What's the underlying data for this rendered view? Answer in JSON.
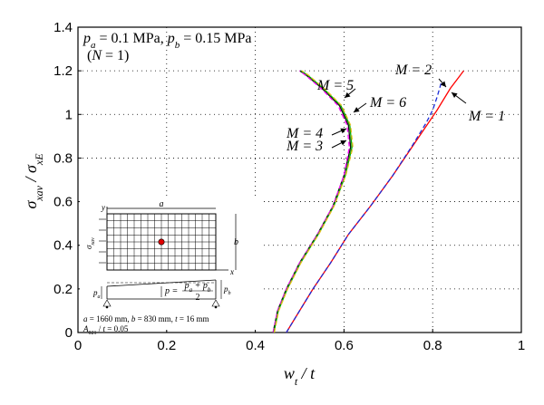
{
  "chart_data": {
    "type": "line",
    "title": "",
    "xlabel": "w_t / t",
    "ylabel": "σ_xav / σ_xE",
    "xlim": [
      0,
      1
    ],
    "ylim": [
      0,
      1.4
    ],
    "xticks": [
      "0",
      "0.2",
      "0.4",
      "0.6",
      "0.8",
      "1"
    ],
    "yticks": [
      "0",
      "0.2",
      "0.4",
      "0.6",
      "0.8",
      "1",
      "1.2",
      "1.4"
    ],
    "grid": "dotted",
    "annotations": {
      "line1": "p_a = 0.1 MPa, p_b = 0.15 MPa",
      "line2": "(N = 1)"
    },
    "series": [
      {
        "name": "M = 1",
        "color": "#ff0000",
        "dash": "solid",
        "points": [
          [
            0.47,
            0.0
          ],
          [
            0.5,
            0.1
          ],
          [
            0.53,
            0.2
          ],
          [
            0.57,
            0.32
          ],
          [
            0.61,
            0.45
          ],
          [
            0.66,
            0.58
          ],
          [
            0.71,
            0.72
          ],
          [
            0.76,
            0.87
          ],
          [
            0.81,
            1.02
          ],
          [
            0.84,
            1.12
          ],
          [
            0.87,
            1.2
          ]
        ]
      },
      {
        "name": "M = 2",
        "color": "#1a2bd8",
        "dash": "dashed",
        "points": [
          [
            0.47,
            0.0
          ],
          [
            0.5,
            0.1
          ],
          [
            0.53,
            0.2
          ],
          [
            0.57,
            0.32
          ],
          [
            0.61,
            0.45
          ],
          [
            0.66,
            0.58
          ],
          [
            0.71,
            0.72
          ],
          [
            0.755,
            0.86
          ],
          [
            0.785,
            0.96
          ],
          [
            0.8,
            1.02
          ],
          [
            0.81,
            1.08
          ],
          [
            0.82,
            1.15
          ]
        ]
      },
      {
        "name": "M = 3",
        "color": "#111111",
        "dash": "solid",
        "points": [
          [
            0.44,
            0.0
          ],
          [
            0.45,
            0.1
          ],
          [
            0.47,
            0.2
          ],
          [
            0.5,
            0.32
          ],
          [
            0.54,
            0.45
          ],
          [
            0.575,
            0.58
          ],
          [
            0.6,
            0.72
          ],
          [
            0.615,
            0.85
          ],
          [
            0.61,
            0.95
          ],
          [
            0.59,
            1.04
          ],
          [
            0.55,
            1.12
          ],
          [
            0.515,
            1.18
          ],
          [
            0.5,
            1.2
          ]
        ]
      },
      {
        "name": "M = 4",
        "color": "#ff00ff",
        "dash": "dashed",
        "points": [
          [
            0.44,
            0.0
          ],
          [
            0.45,
            0.1
          ],
          [
            0.47,
            0.2
          ],
          [
            0.5,
            0.32
          ],
          [
            0.54,
            0.45
          ],
          [
            0.575,
            0.58
          ],
          [
            0.6,
            0.72
          ],
          [
            0.612,
            0.85
          ],
          [
            0.607,
            0.95
          ],
          [
            0.587,
            1.04
          ],
          [
            0.548,
            1.12
          ],
          [
            0.513,
            1.18
          ],
          [
            0.5,
            1.2
          ]
        ]
      },
      {
        "name": "M = 5",
        "color": "#00aa00",
        "dash": "solid",
        "points": [
          [
            0.442,
            0.0
          ],
          [
            0.452,
            0.1
          ],
          [
            0.472,
            0.2
          ],
          [
            0.502,
            0.32
          ],
          [
            0.542,
            0.45
          ],
          [
            0.577,
            0.58
          ],
          [
            0.603,
            0.72
          ],
          [
            0.618,
            0.85
          ],
          [
            0.613,
            0.95
          ],
          [
            0.593,
            1.04
          ],
          [
            0.553,
            1.12
          ],
          [
            0.518,
            1.18
          ],
          [
            0.503,
            1.2
          ]
        ]
      },
      {
        "name": "M = 6",
        "color": "#e8c020",
        "dash": "dashed",
        "points": [
          [
            0.443,
            0.0
          ],
          [
            0.453,
            0.1
          ],
          [
            0.473,
            0.2
          ],
          [
            0.503,
            0.32
          ],
          [
            0.543,
            0.45
          ],
          [
            0.578,
            0.58
          ],
          [
            0.604,
            0.72
          ],
          [
            0.62,
            0.85
          ],
          [
            0.615,
            0.95
          ],
          [
            0.595,
            1.04
          ],
          [
            0.555,
            1.12
          ],
          [
            0.52,
            1.18
          ],
          [
            0.505,
            1.2
          ]
        ]
      }
    ],
    "labels": [
      {
        "text": "M = 2",
        "series": "M = 2"
      },
      {
        "text": "M = 1",
        "series": "M = 1"
      },
      {
        "text": "M = 5",
        "series": "M = 5"
      },
      {
        "text": "M = 6",
        "series": "M = 6"
      },
      {
        "text": "M = 4",
        "series": "M = 4"
      },
      {
        "text": "M = 3",
        "series": "M = 3"
      }
    ],
    "inset": {
      "a_label": "a",
      "b_label": "b",
      "x_label": "x",
      "y_label": "y",
      "sigma_label": "σ_xav",
      "pa_label": "p_a",
      "pb_label": "p_b",
      "p_formula_lhs": "p =",
      "p_formula_num": "p_a + p_b",
      "p_formula_den": "2",
      "dims_line1": "a = 1660 mm, b = 830 mm, t = 16 mm",
      "dims_line2": "A_021 / t = 0.05"
    }
  }
}
